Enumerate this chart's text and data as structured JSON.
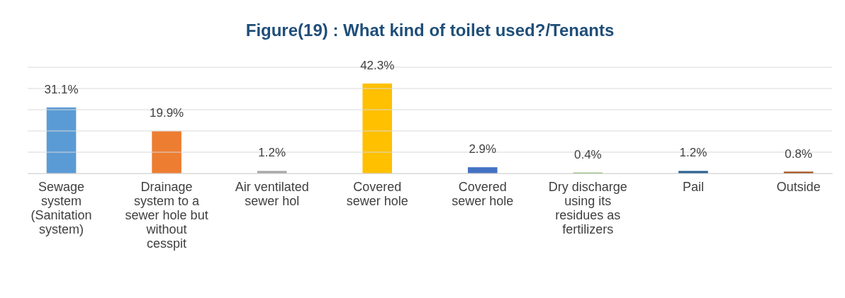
{
  "chart_data": {
    "type": "bar",
    "title": "Figure(19) :  What kind of toilet used?/Tenants",
    "categories": [
      "Sewage system (Sanitation system)",
      "Drainage system to a sewer hole but without cesspit",
      "Air ventilated sewer hol",
      "Covered sewer hole",
      "Covered sewer hole",
      "Dry discharge using its residues as fertilizers",
      "Pail",
      "Outside"
    ],
    "values": [
      31.1,
      19.9,
      1.2,
      42.3,
      2.9,
      0.4,
      1.2,
      0.8
    ],
    "colors": [
      "#5b9bd5",
      "#ed7d31",
      "#a5a5a5",
      "#ffc000",
      "#4472c4",
      "#70ad47",
      "#255e91",
      "#9e480e"
    ],
    "value_labels": [
      "31.1%",
      "19.9%",
      "1.2%",
      "42.3%",
      "2.9%",
      "0.4%",
      "1.2%",
      "0.8%"
    ],
    "ylim": [
      0,
      50
    ],
    "yticks": [
      {
        "value": 0,
        "label": null
      },
      {
        "value": 10,
        "label": null
      },
      {
        "value": 20,
        "label": null
      },
      {
        "value": 30,
        "label": null
      },
      {
        "value": 40,
        "label": null
      },
      {
        "value": 50,
        "label": null
      }
    ],
    "grid": "y",
    "tick_labels": "x"
  }
}
